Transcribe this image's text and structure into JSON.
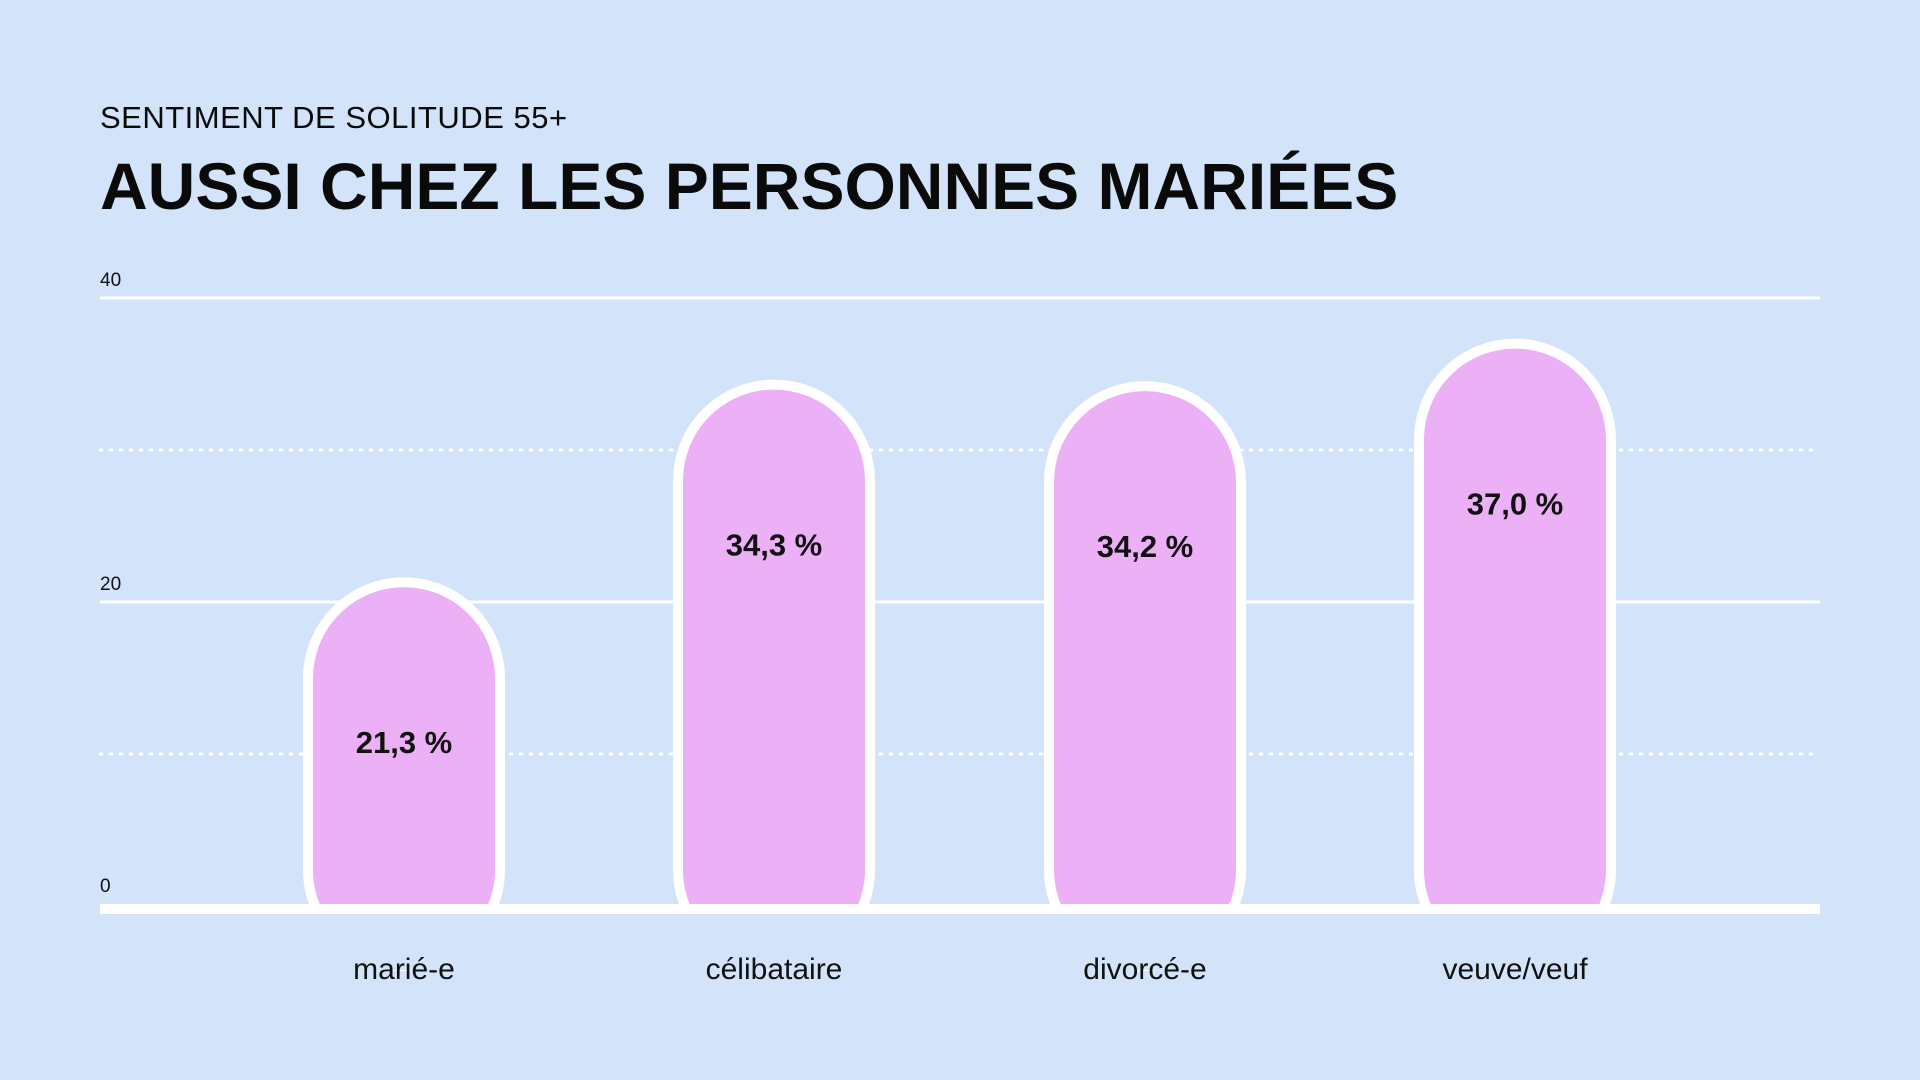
{
  "header": {
    "subtitle": "SENTIMENT DE SOLITUDE 55+",
    "title": "AUSSI CHEZ LES PERSONNES MARIÉES"
  },
  "colors": {
    "background": "#d2e3fa",
    "bar_fill": "#ebb0f5",
    "bar_outline": "#ffffff",
    "grid": "#ffffff",
    "text": "#0a0a0a"
  },
  "chart_data": {
    "type": "bar",
    "title": "AUSSI CHEZ LES PERSONNES MARIÉES",
    "subtitle": "SENTIMENT DE SOLITUDE 55+",
    "categories": [
      "marié-e",
      "célibataire",
      "divorcé-e",
      "veuve/veuf"
    ],
    "values": [
      21.3,
      34.3,
      34.2,
      37.0
    ],
    "value_labels": [
      "21,3 %",
      "34,3 %",
      "34,2 %",
      "37,0 %"
    ],
    "ylim": [
      0,
      40
    ],
    "yticks": [
      "0",
      "20",
      "40"
    ],
    "grid": true,
    "minor_grid_dotted": [
      10,
      30
    ],
    "xlabel": "",
    "ylabel": ""
  }
}
